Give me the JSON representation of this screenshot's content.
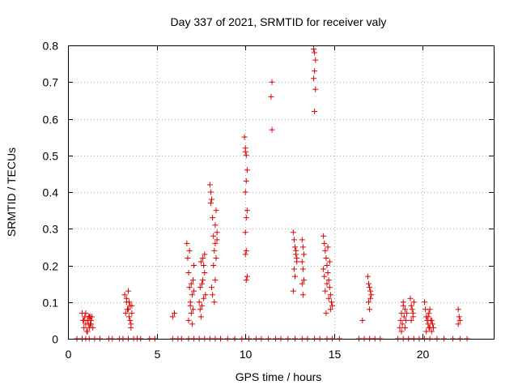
{
  "chart_data": {
    "type": "scatter",
    "title": "Day 337 of 2021, SRMTID for receiver valy",
    "xlabel": "GPS time / hours",
    "ylabel": "SRMTID / TECUs",
    "xlim": [
      0,
      24
    ],
    "ylim": [
      0,
      0.8
    ],
    "xticks": [
      0,
      5,
      10,
      15,
      20
    ],
    "xtick_labels": [
      "0",
      "5",
      "10",
      "15",
      "20"
    ],
    "yticks": [
      0,
      0.1,
      0.2,
      0.3,
      0.4,
      0.5,
      0.6,
      0.7,
      0.8
    ],
    "ytick_labels": [
      "0",
      "0.1",
      "0.2",
      "0.3",
      "0.4",
      "0.5",
      "0.6",
      "0.7",
      "0.8"
    ],
    "grid": true,
    "marker": "+",
    "color": "#e00000",
    "series": [
      {
        "name": "SRMTID",
        "points": [
          [
            0.8,
            0.07
          ],
          [
            0.85,
            0.05
          ],
          [
            0.9,
            0.03
          ],
          [
            0.95,
            0.06
          ],
          [
            1.0,
            0.04
          ],
          [
            1.05,
            0.02
          ],
          [
            1.1,
            0.05
          ],
          [
            1.15,
            0.06
          ],
          [
            1.2,
            0.03
          ],
          [
            1.25,
            0.04
          ],
          [
            1.3,
            0.05
          ],
          [
            1.35,
            0.06
          ],
          [
            1.4,
            0.03
          ],
          [
            1.0,
            0.07
          ],
          [
            1.1,
            0.02
          ],
          [
            1.2,
            0.06
          ],
          [
            1.3,
            0.04
          ],
          [
            0.9,
            0.05
          ],
          [
            1.15,
            0.04
          ],
          [
            1.25,
            0.06
          ],
          [
            3.2,
            0.12
          ],
          [
            3.3,
            0.1
          ],
          [
            3.35,
            0.08
          ],
          [
            3.4,
            0.13
          ],
          [
            3.45,
            0.06
          ],
          [
            3.5,
            0.09
          ],
          [
            3.55,
            0.04
          ],
          [
            3.6,
            0.07
          ],
          [
            3.3,
            0.11
          ],
          [
            3.4,
            0.08
          ],
          [
            3.5,
            0.05
          ],
          [
            3.25,
            0.07
          ],
          [
            3.45,
            0.1
          ],
          [
            3.55,
            0.03
          ],
          [
            3.6,
            0.09
          ],
          [
            5.9,
            0.06
          ],
          [
            6.0,
            0.07
          ],
          [
            6.7,
            0.26
          ],
          [
            6.75,
            0.22
          ],
          [
            6.8,
            0.18
          ],
          [
            6.85,
            0.14
          ],
          [
            6.9,
            0.1
          ],
          [
            6.95,
            0.07
          ],
          [
            7.0,
            0.12
          ],
          [
            7.05,
            0.16
          ],
          [
            7.1,
            0.2
          ],
          [
            6.8,
            0.05
          ],
          [
            6.9,
            0.09
          ],
          [
            7.0,
            0.04
          ],
          [
            7.1,
            0.13
          ],
          [
            6.85,
            0.24
          ],
          [
            6.95,
            0.15
          ],
          [
            7.05,
            0.08
          ],
          [
            7.4,
            0.1
          ],
          [
            7.45,
            0.08
          ],
          [
            7.5,
            0.06
          ],
          [
            7.55,
            0.15
          ],
          [
            7.6,
            0.22
          ],
          [
            7.65,
            0.2
          ],
          [
            7.7,
            0.18
          ],
          [
            7.75,
            0.12
          ],
          [
            7.5,
            0.21
          ],
          [
            7.6,
            0.16
          ],
          [
            7.7,
            0.23
          ],
          [
            7.55,
            0.09
          ],
          [
            7.45,
            0.14
          ],
          [
            7.65,
            0.11
          ],
          [
            8.0,
            0.42
          ],
          [
            8.05,
            0.4
          ],
          [
            8.1,
            0.38
          ],
          [
            8.15,
            0.33
          ],
          [
            8.2,
            0.28
          ],
          [
            8.25,
            0.24
          ],
          [
            8.3,
            0.31
          ],
          [
            8.35,
            0.35
          ],
          [
            8.4,
            0.27
          ],
          [
            8.2,
            0.2
          ],
          [
            8.3,
            0.16
          ],
          [
            8.1,
            0.14
          ],
          [
            8.15,
            0.12
          ],
          [
            8.25,
            0.1
          ],
          [
            8.35,
            0.22
          ],
          [
            8.4,
            0.29
          ],
          [
            8.05,
            0.37
          ],
          [
            8.3,
            0.26
          ],
          [
            9.95,
            0.55
          ],
          [
            10.0,
            0.52
          ],
          [
            10.05,
            0.5
          ],
          [
            10.1,
            0.46
          ],
          [
            10.05,
            0.43
          ],
          [
            10.0,
            0.4
          ],
          [
            10.1,
            0.35
          ],
          [
            10.05,
            0.33
          ],
          [
            10.0,
            0.29
          ],
          [
            10.05,
            0.24
          ],
          [
            10.0,
            0.23
          ],
          [
            10.1,
            0.17
          ],
          [
            10.05,
            0.16
          ],
          [
            10.0,
            0.51
          ],
          [
            11.5,
            0.7
          ],
          [
            11.45,
            0.66
          ],
          [
            11.5,
            0.57
          ],
          [
            12.7,
            0.29
          ],
          [
            12.75,
            0.27
          ],
          [
            12.8,
            0.25
          ],
          [
            12.85,
            0.23
          ],
          [
            12.9,
            0.21
          ],
          [
            12.75,
            0.19
          ],
          [
            12.8,
            0.17
          ],
          [
            12.7,
            0.13
          ],
          [
            12.85,
            0.24
          ],
          [
            12.9,
            0.22
          ],
          [
            13.2,
            0.27
          ],
          [
            13.25,
            0.25
          ],
          [
            13.3,
            0.23
          ],
          [
            13.2,
            0.21
          ],
          [
            13.25,
            0.19
          ],
          [
            13.3,
            0.16
          ],
          [
            13.2,
            0.15
          ],
          [
            13.25,
            0.12
          ],
          [
            13.85,
            0.79
          ],
          [
            13.9,
            0.78
          ],
          [
            13.95,
            0.76
          ],
          [
            13.9,
            0.73
          ],
          [
            13.85,
            0.71
          ],
          [
            13.95,
            0.68
          ],
          [
            13.9,
            0.62
          ],
          [
            14.4,
            0.28
          ],
          [
            14.45,
            0.26
          ],
          [
            14.5,
            0.24
          ],
          [
            14.55,
            0.22
          ],
          [
            14.6,
            0.2
          ],
          [
            14.65,
            0.18
          ],
          [
            14.7,
            0.16
          ],
          [
            14.75,
            0.14
          ],
          [
            14.8,
            0.12
          ],
          [
            14.85,
            0.1
          ],
          [
            14.9,
            0.09
          ],
          [
            14.5,
            0.13
          ],
          [
            14.6,
            0.15
          ],
          [
            14.7,
            0.11
          ],
          [
            14.55,
            0.07
          ],
          [
            14.65,
            0.25
          ],
          [
            14.75,
            0.21
          ],
          [
            14.45,
            0.17
          ],
          [
            14.8,
            0.08
          ],
          [
            14.4,
            0.19
          ],
          [
            16.6,
            0.05
          ],
          [
            16.9,
            0.17
          ],
          [
            16.95,
            0.15
          ],
          [
            17.0,
            0.14
          ],
          [
            17.05,
            0.13
          ],
          [
            17.1,
            0.12
          ],
          [
            16.95,
            0.1
          ],
          [
            17.0,
            0.08
          ],
          [
            17.05,
            0.11
          ],
          [
            18.7,
            0.03
          ],
          [
            18.75,
            0.05
          ],
          [
            18.8,
            0.07
          ],
          [
            18.85,
            0.04
          ],
          [
            18.9,
            0.09
          ],
          [
            18.95,
            0.06
          ],
          [
            19.0,
            0.03
          ],
          [
            19.05,
            0.05
          ],
          [
            19.1,
            0.07
          ],
          [
            18.8,
            0.02
          ],
          [
            18.9,
            0.1
          ],
          [
            19.0,
            0.08
          ],
          [
            19.3,
            0.11
          ],
          [
            19.35,
            0.09
          ],
          [
            19.4,
            0.08
          ],
          [
            19.45,
            0.06
          ],
          [
            19.5,
            0.1
          ],
          [
            19.35,
            0.05
          ],
          [
            19.45,
            0.07
          ],
          [
            20.1,
            0.1
          ],
          [
            20.15,
            0.08
          ],
          [
            20.2,
            0.06
          ],
          [
            20.25,
            0.05
          ],
          [
            20.3,
            0.04
          ],
          [
            20.35,
            0.07
          ],
          [
            20.4,
            0.03
          ],
          [
            20.45,
            0.05
          ],
          [
            20.5,
            0.02
          ],
          [
            20.55,
            0.04
          ],
          [
            20.6,
            0.03
          ],
          [
            20.3,
            0.06
          ],
          [
            20.4,
            0.08
          ],
          [
            20.5,
            0.05
          ],
          [
            20.2,
            0.02
          ],
          [
            20.35,
            0.03
          ],
          [
            22.0,
            0.08
          ],
          [
            22.05,
            0.06
          ],
          [
            22.1,
            0.05
          ],
          [
            22.0,
            0.04
          ],
          [
            0.5,
            0
          ],
          [
            0.8,
            0
          ],
          [
            1.0,
            0
          ],
          [
            1.2,
            0
          ],
          [
            1.5,
            0
          ],
          [
            1.8,
            0
          ],
          [
            2.3,
            0
          ],
          [
            2.5,
            0
          ],
          [
            2.9,
            0
          ],
          [
            3.1,
            0
          ],
          [
            3.4,
            0
          ],
          [
            3.7,
            0
          ],
          [
            3.9,
            0
          ],
          [
            4.1,
            0
          ],
          [
            4.6,
            0
          ],
          [
            4.9,
            0
          ],
          [
            5.9,
            0
          ],
          [
            6.2,
            0
          ],
          [
            6.4,
            0
          ],
          [
            6.8,
            0
          ],
          [
            7.1,
            0
          ],
          [
            7.4,
            0
          ],
          [
            7.7,
            0
          ],
          [
            8.0,
            0
          ],
          [
            8.3,
            0
          ],
          [
            8.6,
            0
          ],
          [
            9.0,
            0
          ],
          [
            9.4,
            0
          ],
          [
            9.8,
            0
          ],
          [
            10.2,
            0
          ],
          [
            10.6,
            0
          ],
          [
            10.9,
            0
          ],
          [
            11.3,
            0
          ],
          [
            11.7,
            0
          ],
          [
            12.0,
            0
          ],
          [
            12.4,
            0
          ],
          [
            12.8,
            0
          ],
          [
            13.2,
            0
          ],
          [
            13.5,
            0
          ],
          [
            13.9,
            0
          ],
          [
            14.2,
            0
          ],
          [
            14.6,
            0
          ],
          [
            14.9,
            0
          ],
          [
            15.3,
            0
          ],
          [
            16.4,
            0
          ],
          [
            16.7,
            0
          ],
          [
            17.0,
            0
          ],
          [
            17.3,
            0
          ],
          [
            17.6,
            0
          ],
          [
            18.6,
            0
          ],
          [
            18.9,
            0
          ],
          [
            19.2,
            0
          ],
          [
            19.5,
            0
          ],
          [
            19.8,
            0
          ],
          [
            20.1,
            0
          ],
          [
            20.4,
            0
          ],
          [
            20.8,
            0
          ],
          [
            21.2,
            0
          ],
          [
            21.7,
            0
          ],
          [
            22.1,
            0
          ],
          [
            22.5,
            0
          ]
        ]
      }
    ]
  }
}
